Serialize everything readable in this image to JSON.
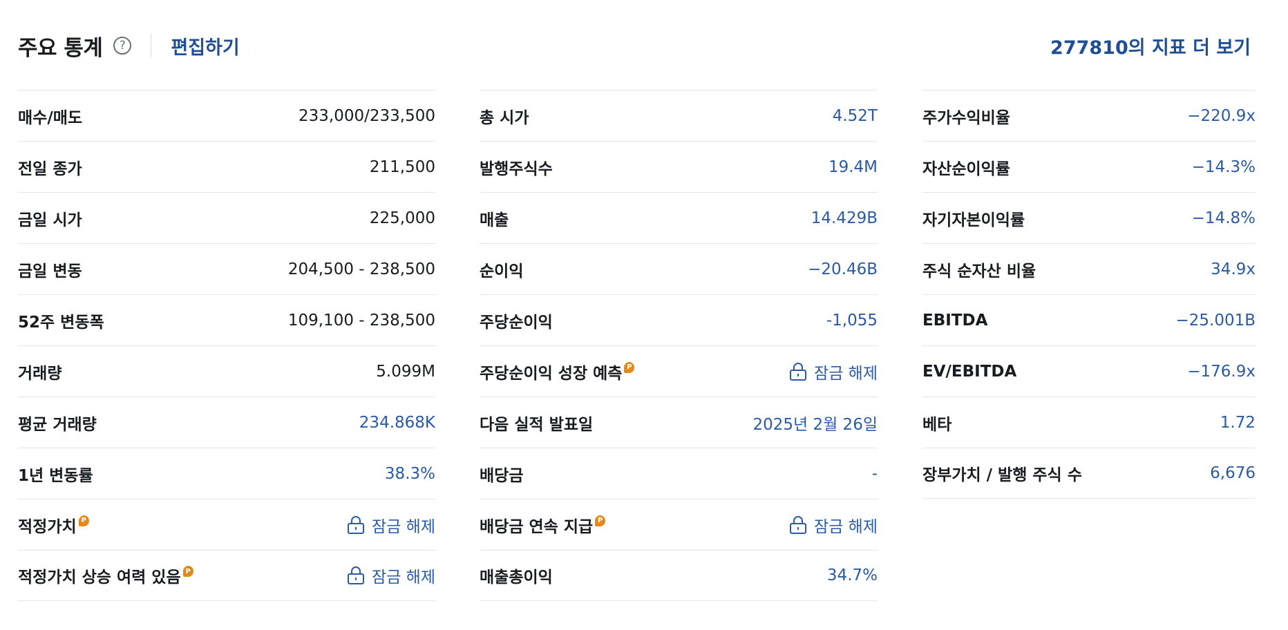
{
  "header": {
    "title": "주요 통계",
    "help_icon": "?",
    "edit_label": "편집하기",
    "more_label": "277810의 지표 더 보기"
  },
  "colors": {
    "link": "#1f4e96",
    "value_blue": "#2a5aa6",
    "pro_badge": "#e48a1c",
    "text": "#181c21"
  },
  "pro_badge_text": "P",
  "columns": [
    {
      "rows": [
        {
          "label": "매수/매도",
          "value": "233,000/233,500",
          "style": "dark"
        },
        {
          "label": "전일 종가",
          "value": "211,500",
          "style": "dark"
        },
        {
          "label": "금일 시가",
          "value": "225,000",
          "style": "dark"
        },
        {
          "label": "금일 변동",
          "value": "204,500 - 238,500",
          "style": "dark"
        },
        {
          "label": "52주 변동폭",
          "value": "109,100 - 238,500",
          "style": "dark"
        },
        {
          "label": "거래량",
          "value": "5.099M",
          "style": "dark"
        },
        {
          "label": "평균 거래량",
          "value": "234.868K",
          "style": "blue"
        },
        {
          "label": "1년 변동률",
          "value": "38.3%",
          "style": "blue"
        },
        {
          "label": "적정가치",
          "value": "잠금 해제",
          "style": "blue",
          "pro": true,
          "locked": true
        },
        {
          "label": "적정가치 상승 여력 있음",
          "value": "잠금 해제",
          "style": "blue",
          "pro": true,
          "locked": true
        }
      ]
    },
    {
      "rows": [
        {
          "label": "총 시가",
          "value": "4.52T",
          "style": "blue"
        },
        {
          "label": "발행주식수",
          "value": "19.4M",
          "style": "blue"
        },
        {
          "label": "매출",
          "value": "14.429B",
          "style": "blue"
        },
        {
          "label": "순이익",
          "value": "−20.46B",
          "style": "blue"
        },
        {
          "label": "주당순이익",
          "value": "-1,055",
          "style": "blue"
        },
        {
          "label": "주당순이익 성장 예측",
          "value": "잠금 해제",
          "style": "blue",
          "pro": true,
          "locked": true
        },
        {
          "label": "다음 실적 발표일",
          "value": "2025년 2월 26일",
          "style": "blue"
        },
        {
          "label": "배당금",
          "value": "-",
          "style": "blue"
        },
        {
          "label": "배당금 연속 지급",
          "value": "잠금 해제",
          "style": "blue",
          "pro": true,
          "locked": true
        },
        {
          "label": "매출총이익",
          "value": "34.7%",
          "style": "blue"
        }
      ]
    },
    {
      "rows": [
        {
          "label": "주가수익비율",
          "value": "−220.9x",
          "style": "blue"
        },
        {
          "label": "자산순이익률",
          "value": "−14.3%",
          "style": "blue"
        },
        {
          "label": "자기자본이익률",
          "value": "−14.8%",
          "style": "blue"
        },
        {
          "label": "주식 순자산 비율",
          "value": "34.9x",
          "style": "blue"
        },
        {
          "label": "EBITDA",
          "value": "−25.001B",
          "style": "blue"
        },
        {
          "label": "EV/EBITDA",
          "value": "−176.9x",
          "style": "blue"
        },
        {
          "label": "베타",
          "value": "1.72",
          "style": "blue"
        },
        {
          "label": "장부가치 / 발행 주식 수",
          "value": "6,676",
          "style": "blue"
        }
      ]
    }
  ]
}
